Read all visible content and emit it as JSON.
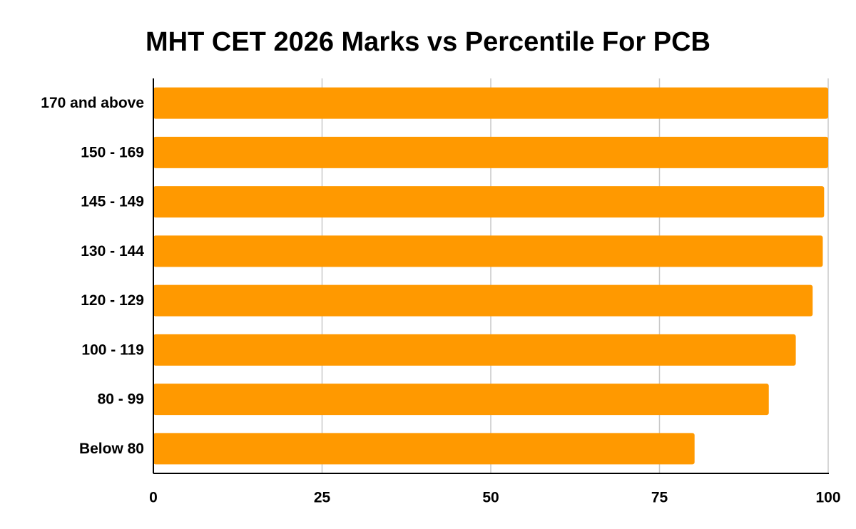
{
  "chart_data": {
    "type": "bar",
    "orientation": "horizontal",
    "title": "MHT CET 2026 Marks vs Percentile For PCB",
    "xlabel": "",
    "ylabel": "",
    "categories": [
      "170 and above",
      "150 - 169",
      "145 - 149",
      "130 - 144",
      "120 - 129",
      "100 - 119",
      "80 - 99",
      "Below 80"
    ],
    "values": [
      100,
      100,
      99.4,
      99.2,
      97.7,
      95.2,
      91.2,
      80.2
    ],
    "xlim": [
      0,
      100
    ],
    "xticks": [
      0,
      25,
      50,
      75,
      100
    ],
    "grid": true,
    "legend": "none",
    "bar_color": "#ff9900",
    "grid_color": "#c8c8c8",
    "axis_color": "#000000"
  }
}
